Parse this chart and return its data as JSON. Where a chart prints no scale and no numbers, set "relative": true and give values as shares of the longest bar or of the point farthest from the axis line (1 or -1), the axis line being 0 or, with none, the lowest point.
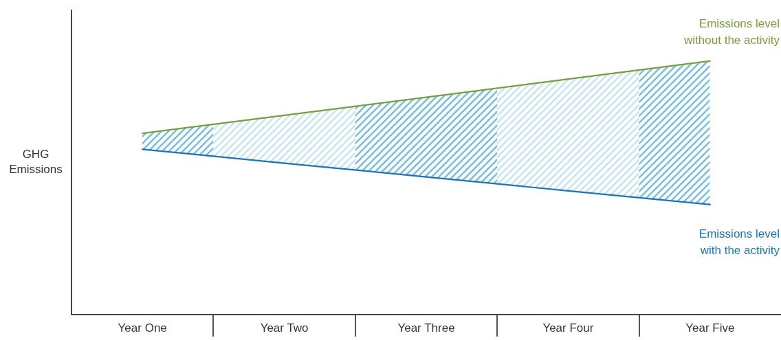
{
  "chart_data": {
    "type": "line",
    "ylabel": "GHG Emissions",
    "relative": true,
    "legend": false,
    "marker": "none",
    "line_style": "solid",
    "categories": [
      "Year One",
      "Year Two",
      "Year Three",
      "Year Four",
      "Year Five"
    ],
    "series": [
      {
        "name": "Emissions level without the activity",
        "color": "#77a03a",
        "values": [
          0.715,
          0.786,
          0.857,
          0.929,
          1
        ]
      },
      {
        "name": "Emissions level with the activity",
        "color": "#1a73c0",
        "values": [
          0.652,
          0.597,
          0.543,
          0.488,
          0.434
        ]
      }
    ]
  }
}
